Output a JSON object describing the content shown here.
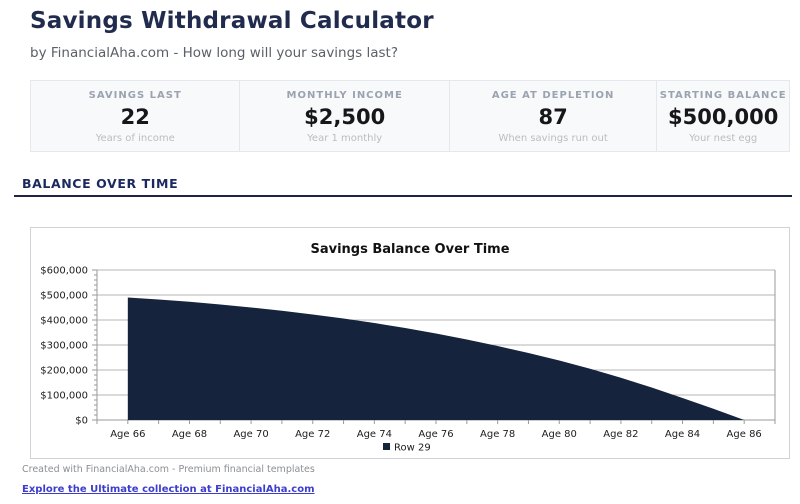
{
  "page": {
    "title": "Savings Withdrawal Calculator",
    "subtitle": "by FinancialAha.com - How long will your savings last?"
  },
  "stats": [
    {
      "label": "SAVINGS LAST",
      "value": "22",
      "sub": "Years of income"
    },
    {
      "label": "MONTHLY INCOME",
      "value": "$2,500",
      "sub": "Year 1 monthly"
    },
    {
      "label": "AGE AT DEPLETION",
      "value": "87",
      "sub": "When savings run out"
    },
    {
      "label": "STARTING BALANCE",
      "value": "$500,000",
      "sub": "Your nest egg"
    }
  ],
  "section": {
    "heading": "BALANCE OVER TIME"
  },
  "chart_data": {
    "type": "area",
    "title": "Savings Balance Over Time",
    "legend": "Row 29",
    "legend_position": "bottom-center",
    "grid": "horizontal",
    "xlim": [
      65,
      87
    ],
    "ylim": [
      0,
      600000
    ],
    "series": [
      {
        "name": "Row 29",
        "color": "#16233d",
        "x": [
          66,
          67,
          68,
          69,
          70,
          71,
          72,
          73,
          74,
          75,
          76,
          77,
          78,
          79,
          80,
          81,
          82,
          83,
          84,
          85,
          86
        ],
        "values": [
          490000,
          482000,
          473000,
          462000,
          450000,
          437000,
          422000,
          406000,
          388000,
          368000,
          346000,
          322000,
          296000,
          268000,
          238000,
          205000,
          169000,
          130000,
          88000,
          45000,
          0
        ]
      }
    ],
    "x_ticks": [
      {
        "age": 66,
        "label": "Age 66"
      },
      {
        "age": 68,
        "label": "Age 68"
      },
      {
        "age": 70,
        "label": "Age 70"
      },
      {
        "age": 72,
        "label": "Age 72"
      },
      {
        "age": 74,
        "label": "Age 74"
      },
      {
        "age": 76,
        "label": "Age 76"
      },
      {
        "age": 78,
        "label": "Age 78"
      },
      {
        "age": 80,
        "label": "Age 80"
      },
      {
        "age": 82,
        "label": "Age 82"
      },
      {
        "age": 84,
        "label": "Age 84"
      },
      {
        "age": 86,
        "label": "Age 86"
      }
    ],
    "y_ticks": [
      {
        "value": 0,
        "label": "$0"
      },
      {
        "value": 100000,
        "label": "$100,000"
      },
      {
        "value": 200000,
        "label": "$200,000"
      },
      {
        "value": 300000,
        "label": "$300,000"
      },
      {
        "value": 400000,
        "label": "$400,000"
      },
      {
        "value": 500000,
        "label": "$500,000"
      },
      {
        "value": 600000,
        "label": "$600,000"
      }
    ]
  },
  "footer": {
    "created": "Created with FinancialAha.com - Premium financial templates",
    "link": "Explore the Ultimate collection at FinancialAha.com"
  },
  "colors": {
    "heading_navy": "#1b2a5e",
    "title_navy": "#212b4d",
    "area_fill": "#16233d",
    "grid_line": "#b6b6b6",
    "axis_line": "#9a9a9a",
    "tick_text": "#1d1d1d",
    "link_blue": "#3d3dcc",
    "card_bg": "#f8f9fb",
    "card_border": "#e4e7eb"
  }
}
